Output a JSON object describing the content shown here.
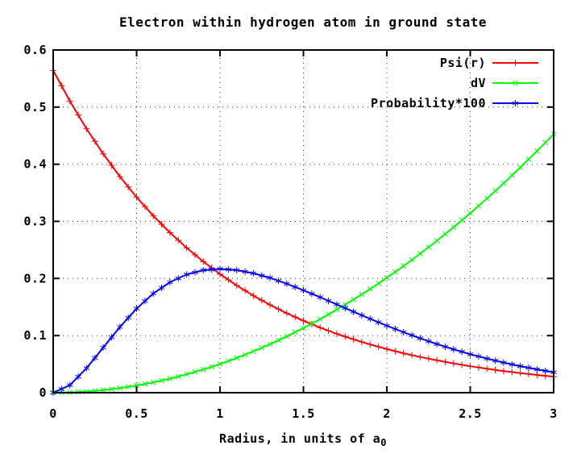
{
  "title": "Electron within hydrogen atom in ground state",
  "xlabel": {
    "text": "Radius, in units of a",
    "sub": "0"
  },
  "colors": {
    "background": "#ffffff",
    "axis": "#000000",
    "grid": "#333333",
    "series_psi": "#ff0000",
    "series_dv": "#00ff00",
    "series_prob": "#0000ff"
  },
  "chart_data": {
    "type": "line",
    "title": "Electron within hydrogen atom in ground state",
    "xlabel": "Radius, in units of a_0",
    "ylabel": "",
    "xlim": [
      0,
      3
    ],
    "ylim": [
      0,
      0.6
    ],
    "grid": true,
    "legend_position": "top-right-inside",
    "x_ticks": [
      0,
      0.5,
      1,
      1.5,
      2,
      2.5,
      3
    ],
    "x_tick_labels": [
      "0",
      "0.5",
      "1",
      "1.5",
      "2",
      "2.5",
      "3"
    ],
    "y_ticks": [
      0,
      0.1,
      0.2,
      0.3,
      0.4,
      0.5,
      0.6
    ],
    "y_tick_labels": [
      "0",
      "0.1",
      "0.2",
      "0.3",
      "0.4",
      "0.5",
      "0.6"
    ],
    "x": [
      0.0,
      0.1,
      0.2,
      0.3,
      0.4,
      0.5,
      0.6,
      0.7,
      0.8,
      0.9,
      1.0,
      1.1,
      1.2,
      1.3,
      1.4,
      1.5,
      1.6,
      1.7,
      1.8,
      1.9,
      2.0,
      2.1,
      2.2,
      2.3,
      2.4,
      2.5,
      2.6,
      2.7,
      2.8,
      2.9,
      3.0
    ],
    "series": [
      {
        "name": "Psi(r)",
        "color": "#ff0000",
        "marker": "plus",
        "values": [
          0.5642,
          0.5105,
          0.4619,
          0.418,
          0.3782,
          0.3422,
          0.3096,
          0.2802,
          0.2535,
          0.2294,
          0.2076,
          0.1878,
          0.1699,
          0.1538,
          0.1391,
          0.1259,
          0.1139,
          0.1031,
          0.0933,
          0.0844,
          0.0764,
          0.0691,
          0.0625,
          0.0566,
          0.0512,
          0.0463,
          0.0419,
          0.0379,
          0.0343,
          0.031,
          0.0281
        ]
      },
      {
        "name": "dV",
        "color": "#00ff00",
        "marker": "cross",
        "values": [
          0.0,
          0.0005,
          0.002,
          0.0045,
          0.008,
          0.0126,
          0.0181,
          0.0246,
          0.0322,
          0.0407,
          0.0503,
          0.0609,
          0.0724,
          0.085,
          0.0986,
          0.1132,
          0.1288,
          0.1454,
          0.163,
          0.1816,
          0.2012,
          0.2218,
          0.2435,
          0.2661,
          0.2897,
          0.3144,
          0.34,
          0.3667,
          0.3944,
          0.4231,
          0.4527
        ]
      },
      {
        "name": "Probability*100",
        "color": "#0000ff",
        "marker": "star",
        "values": [
          0.0,
          0.0131,
          0.0429,
          0.0791,
          0.1151,
          0.1472,
          0.1736,
          0.1934,
          0.2069,
          0.2144,
          0.2167,
          0.2146,
          0.2091,
          0.201,
          0.1908,
          0.1793,
          0.1671,
          0.1544,
          0.1417,
          0.1293,
          0.1173,
          0.1059,
          0.0951,
          0.0851,
          0.0759,
          0.0674,
          0.0597,
          0.0527,
          0.0464,
          0.0408,
          0.0357
        ]
      }
    ]
  }
}
